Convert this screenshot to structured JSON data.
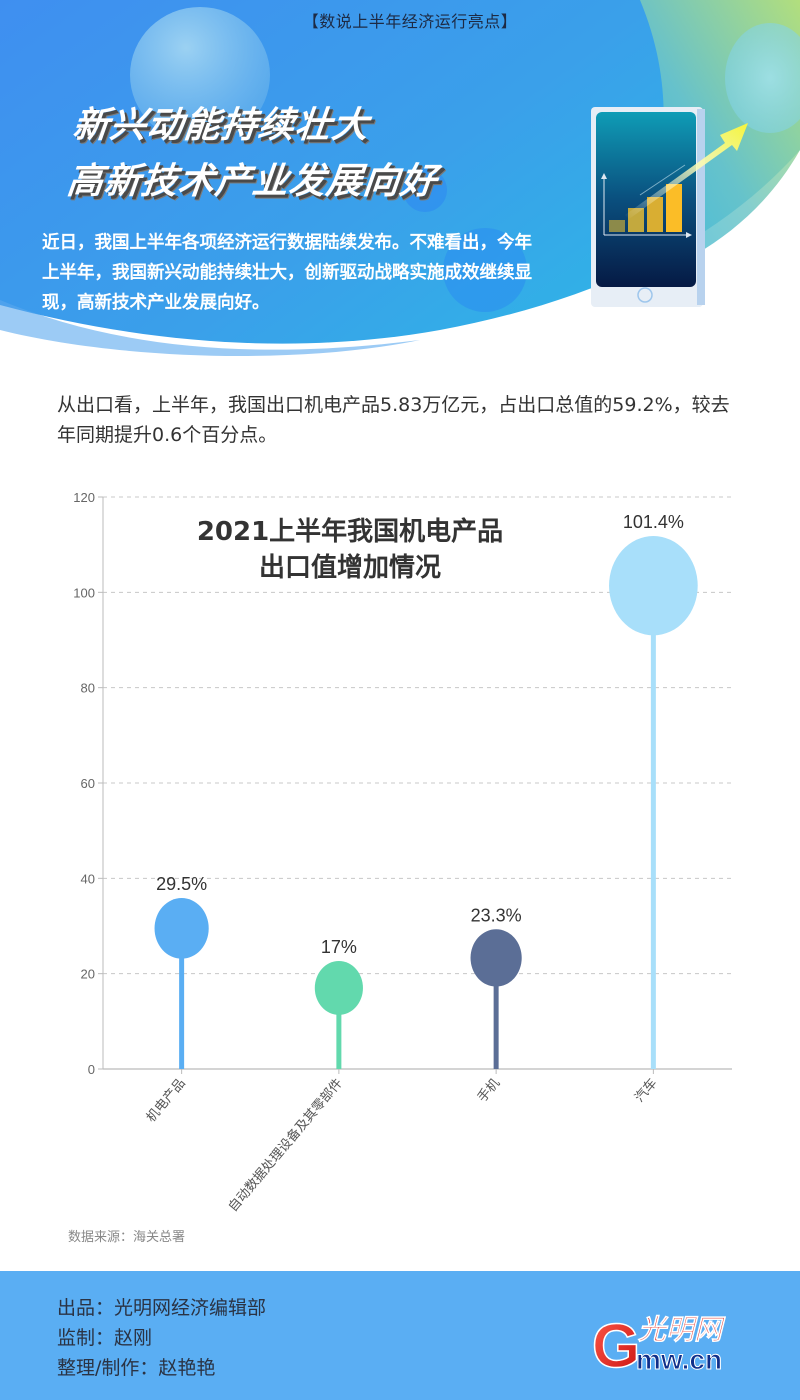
{
  "header": {
    "kicker": "【数说上半年经济运行亮点】",
    "headline_line1": "新兴动能持续壮大",
    "headline_line2": "高新技术产业发展向好",
    "intro": "近日，我国上半年各项经济运行数据陆续发布。不难看出，今年上半年，我国新兴动能持续壮大，创新驱动战略实施成效继续显现，高新技术产业发展向好。",
    "illustration": "phone-rising-bar-chart-icon"
  },
  "lead": {
    "text": "从出口看，上半年，我国出口机电产品5.83万亿元，占出口总值的59.2%，较去年同期提升0.6个百分点。"
  },
  "chart_data": {
    "type": "bar",
    "style": "lollipop",
    "title": "2021上半年我国机电产品出口值增加情况",
    "title_line1": "2021上半年我国机电产品",
    "title_line2": "出口值增加情况",
    "categories": [
      "机电产品",
      "自动数据处理设备及其零部件",
      "手机",
      "汽车"
    ],
    "values": [
      29.5,
      17,
      23.3,
      101.4
    ],
    "data_labels": [
      "29.5%",
      "17%",
      "23.3%",
      "101.4%"
    ],
    "colors": [
      "#5aaef3",
      "#62d9ad",
      "#5b6e96",
      "#a8dffa"
    ],
    "xlabel": "",
    "ylabel": "",
    "ylim": [
      0,
      120
    ],
    "yticks": [
      0,
      20,
      40,
      60,
      80,
      100,
      120
    ],
    "grid": true,
    "legend": "none"
  },
  "chart": {
    "source": "数据来源：海关总署"
  },
  "footer": {
    "credit_producer": "出品：光明网经济编辑部",
    "credit_supervisor": "监制：赵刚",
    "credit_editor": "整理/制作：赵艳艳",
    "logo_cn": "光明网",
    "logo_en": "mw.cn",
    "logo_letter": "G"
  }
}
